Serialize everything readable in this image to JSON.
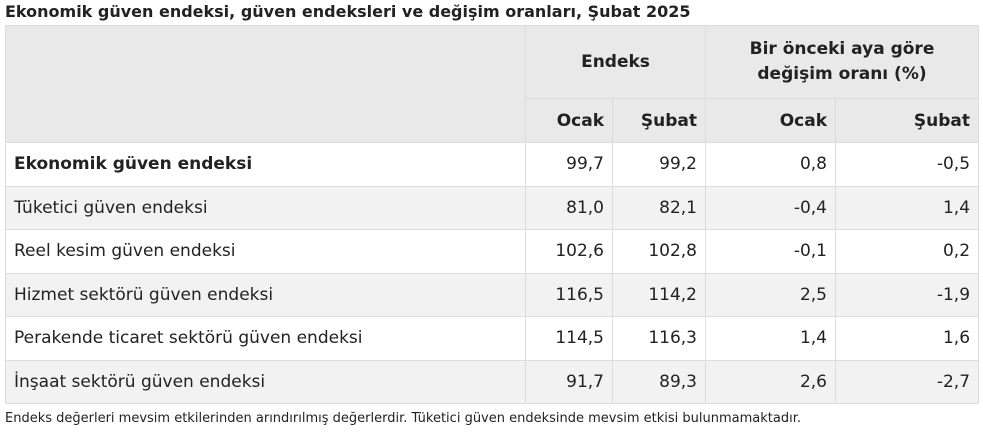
{
  "title": "Ekonomik güven endeksi, güven endeksleri ve değişim oranları, Şubat 2025",
  "table": {
    "header_groups": [
      "Endeks",
      "Bir önceki aya göre değişim oranı (%)"
    ],
    "columns": [
      "Ocak",
      "Şubat",
      "Ocak",
      "Şubat"
    ],
    "rows": [
      [
        "Ekonomik güven endeksi",
        "99,7",
        "99,2",
        "0,8",
        "-0,5"
      ],
      [
        "Tüketici güven endeksi",
        "81,0",
        "82,1",
        "-0,4",
        "1,4"
      ],
      [
        "Reel kesim güven endeksi",
        "102,6",
        "102,8",
        "-0,1",
        "0,2"
      ],
      [
        "Hizmet sektörü güven endeksi",
        "116,5",
        "114,2",
        "2,5",
        "-1,9"
      ],
      [
        "Perakende ticaret sektörü güven endeksi",
        "114,5",
        "116,3",
        "1,4",
        "1,6"
      ],
      [
        "İnşaat sektörü güven endeksi",
        "91,7",
        "89,3",
        "2,6",
        "-2,7"
      ]
    ]
  },
  "footnote": "Endeks değerleri mevsim etkilerinden arındırılmış değerlerdir. Tüketici güven endeksinde mevsim etkisi bulunmamaktadır."
}
